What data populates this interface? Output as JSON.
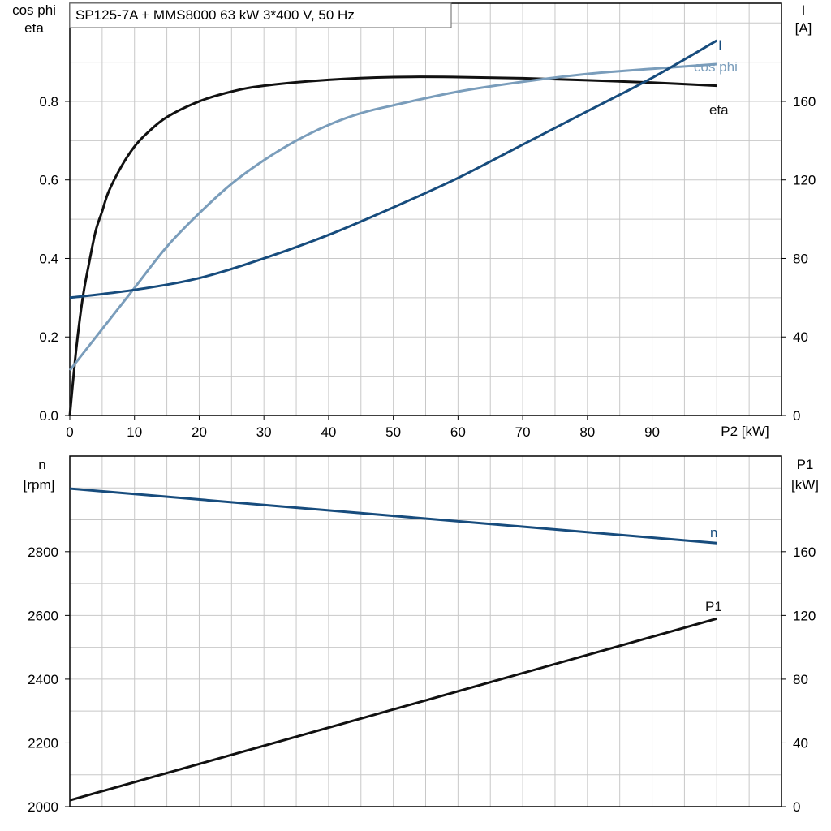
{
  "chart_data": [
    {
      "type": "line",
      "title": "SP125-7A + MMS8000   63 kW   3*400 V, 50 Hz",
      "xlabel": "P2 [kW]",
      "xlim": [
        0,
        110
      ],
      "xticks": [
        0,
        10,
        20,
        30,
        40,
        50,
        60,
        70,
        80,
        90
      ],
      "ylabel_left": [
        "cos phi",
        "eta"
      ],
      "ylim_left": [
        0,
        1.05
      ],
      "yticks_left": [
        "0.0",
        "0.2",
        "0.4",
        "0.6",
        "0.8"
      ],
      "ylabel_right": [
        "I",
        "[A]"
      ],
      "ylim_right": [
        0,
        210
      ],
      "yticks_right": [
        "0",
        "40",
        "80",
        "120",
        "160"
      ],
      "grid": true,
      "colors": {
        "I": "#174c7d",
        "cos_phi": "#7a9dbb",
        "eta": "#111111"
      },
      "series": [
        {
          "name": "eta",
          "axis": "left",
          "x": [
            0,
            1,
            2,
            3,
            4,
            5,
            6,
            8,
            10,
            12,
            15,
            20,
            25,
            30,
            40,
            50,
            60,
            70,
            80,
            90,
            100
          ],
          "y": [
            0.0,
            0.17,
            0.3,
            0.39,
            0.47,
            0.52,
            0.57,
            0.635,
            0.685,
            0.72,
            0.76,
            0.8,
            0.825,
            0.84,
            0.855,
            0.862,
            0.862,
            0.859,
            0.854,
            0.848,
            0.84
          ]
        },
        {
          "name": "cos phi",
          "axis": "left",
          "x": [
            0,
            5,
            10,
            15,
            20,
            25,
            30,
            35,
            40,
            45,
            50,
            60,
            70,
            80,
            90,
            100
          ],
          "y": [
            0.115,
            0.22,
            0.325,
            0.43,
            0.515,
            0.59,
            0.65,
            0.7,
            0.74,
            0.77,
            0.79,
            0.825,
            0.85,
            0.87,
            0.883,
            0.895
          ]
        },
        {
          "name": "I",
          "axis": "right",
          "x": [
            0,
            10,
            20,
            30,
            40,
            50,
            60,
            70,
            80,
            90,
            100
          ],
          "y": [
            60,
            64,
            70,
            80,
            92,
            106,
            121,
            138,
            155,
            172,
            191
          ]
        }
      ]
    },
    {
      "type": "line",
      "xlim": [
        0,
        110
      ],
      "ylabel_left": [
        "n",
        "[rpm]"
      ],
      "ylim_left": [
        2000,
        3100
      ],
      "yticks_left": [
        "2000",
        "2200",
        "2400",
        "2600",
        "2800"
      ],
      "ylabel_right": [
        "P1",
        "[kW]"
      ],
      "ylim_right": [
        0,
        220
      ],
      "yticks_right": [
        "0",
        "40",
        "80",
        "120",
        "160"
      ],
      "grid": true,
      "colors": {
        "n": "#174c7d",
        "P1": "#111111"
      },
      "series": [
        {
          "name": "n",
          "axis": "left",
          "x": [
            0,
            100
          ],
          "y": [
            2998,
            2827
          ]
        },
        {
          "name": "P1",
          "axis": "right",
          "x": [
            0,
            100
          ],
          "y": [
            4,
            118
          ]
        }
      ]
    }
  ]
}
